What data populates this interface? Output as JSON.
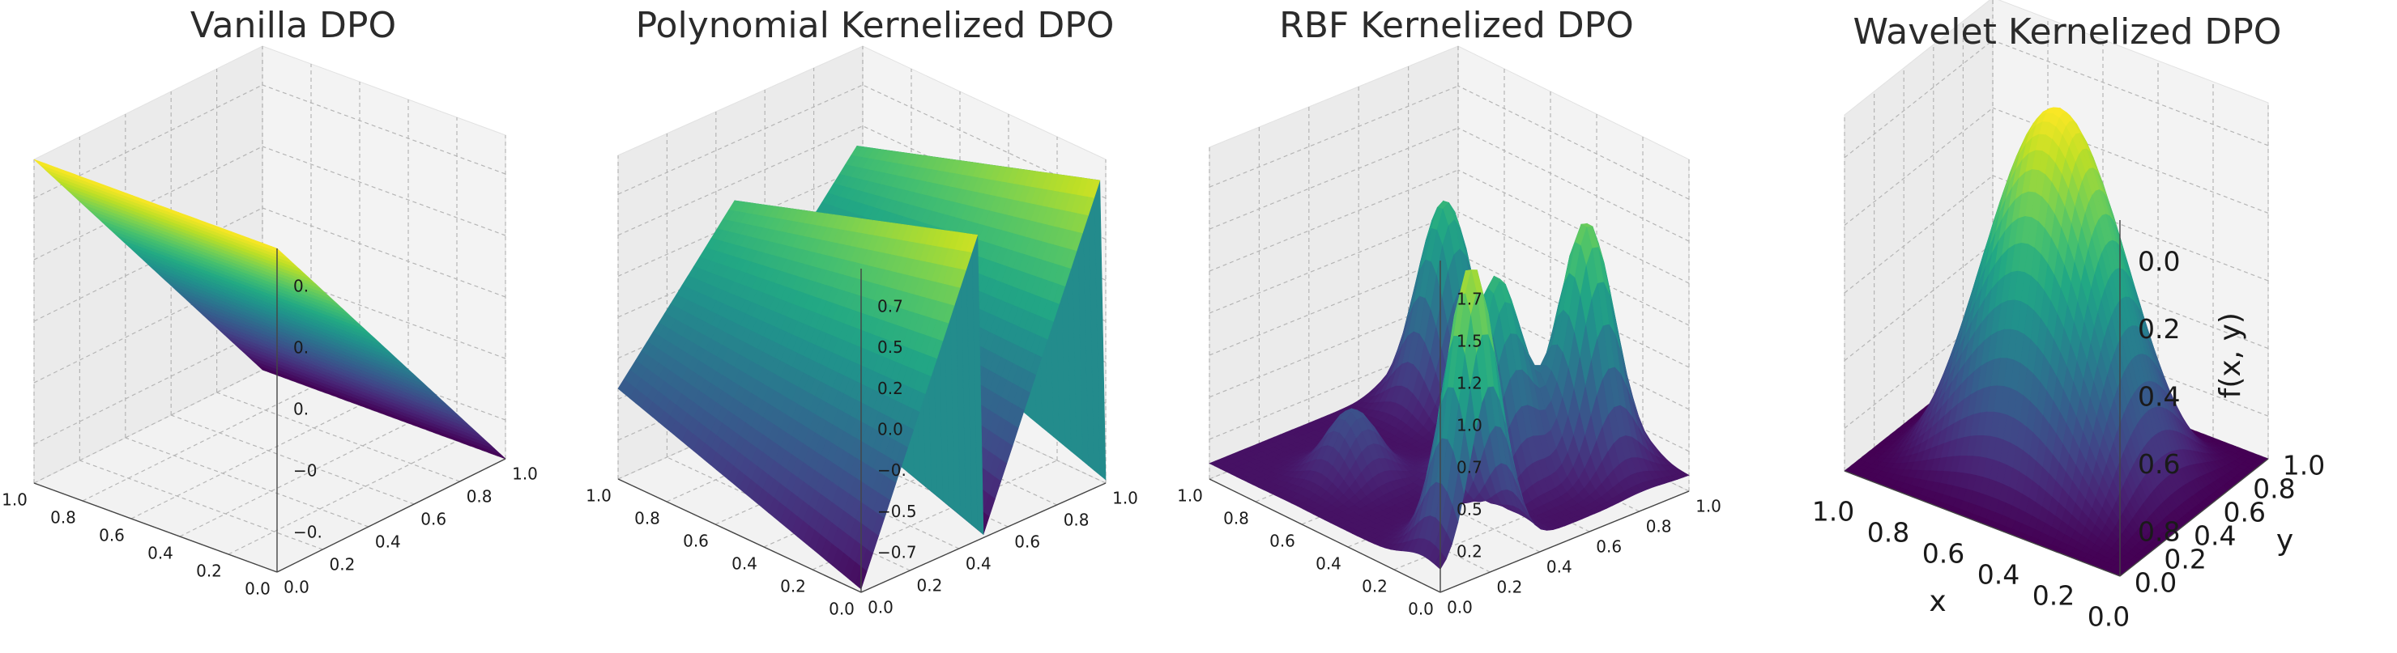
{
  "chart_data": [
    {
      "type": "surface3d",
      "title": "Vanilla DPO",
      "colormap": "viridis",
      "x_ticks": [
        "0.0",
        "0.2",
        "0.4",
        "0.6",
        "0.8",
        "1.0"
      ],
      "y_ticks": [
        "0.0",
        "0.2",
        "0.4",
        "0.6",
        "0.8",
        "1.0"
      ],
      "z_ticks": [
        "0.",
        "0.",
        "0.",
        "−0",
        "−0."
      ],
      "xlim": [
        0,
        1
      ],
      "ylim": [
        0,
        1
      ],
      "zlim": [
        -1,
        1
      ],
      "surface": "plane z = 1 - 2y",
      "grid": true
    },
    {
      "type": "surface3d",
      "title": "Polynomial Kernelized DPO",
      "colormap": "viridis",
      "x_ticks": [
        "0.0",
        "0.2",
        "0.4",
        "0.6",
        "0.8",
        "1.0"
      ],
      "y_ticks": [
        "0.0",
        "0.2",
        "0.4",
        "0.6",
        "0.8",
        "1.0"
      ],
      "z_ticks": [
        "0.7",
        "0.5",
        "0.2",
        "0.0",
        "−0.",
        "−0.5",
        "−0.7"
      ],
      "xlim": [
        0,
        1
      ],
      "ylim": [
        0,
        1
      ],
      "zlim": [
        -0.75,
        0.75
      ],
      "surface": "sawtooth ridges, period 0.5 in y, decaying with x",
      "grid": true
    },
    {
      "type": "surface3d",
      "title": "RBF Kernelized DPO",
      "colormap": "viridis",
      "x_ticks": [
        "0.0",
        "0.2",
        "0.4",
        "0.6",
        "0.8",
        "1.0"
      ],
      "y_ticks": [
        "0.0",
        "0.2",
        "0.4",
        "0.6",
        "0.8",
        "1.0"
      ],
      "z_ticks": [
        "1.7",
        "1.5",
        "1.2",
        "1.0",
        "0.7",
        "0.5",
        "0.2"
      ],
      "xlim": [
        0,
        1
      ],
      "ylim": [
        0,
        1
      ],
      "zlim": [
        0.1,
        1.8
      ],
      "surface": "sum of gaussian peaks",
      "grid": true
    },
    {
      "type": "surface3d",
      "title": "Wavelet Kernelized DPO",
      "colormap": "viridis",
      "xlabel": "x",
      "ylabel": "y",
      "zlabel": "f(x, y)",
      "x_ticks": [
        "0.0",
        "0.2",
        "0.4",
        "0.6",
        "0.8",
        "1.0"
      ],
      "y_ticks": [
        "0.0",
        "0.2",
        "0.4",
        "0.6",
        "0.8",
        "1.0"
      ],
      "z_ticks": [
        "0.0",
        "0.2",
        "0.4",
        "0.6",
        "0.8"
      ],
      "xlim": [
        0,
        1
      ],
      "ylim": [
        0,
        1
      ],
      "zlim": [
        0,
        0.95
      ],
      "surface": "sin^2(pi x) * sin^2(pi y)",
      "grid": true
    }
  ]
}
